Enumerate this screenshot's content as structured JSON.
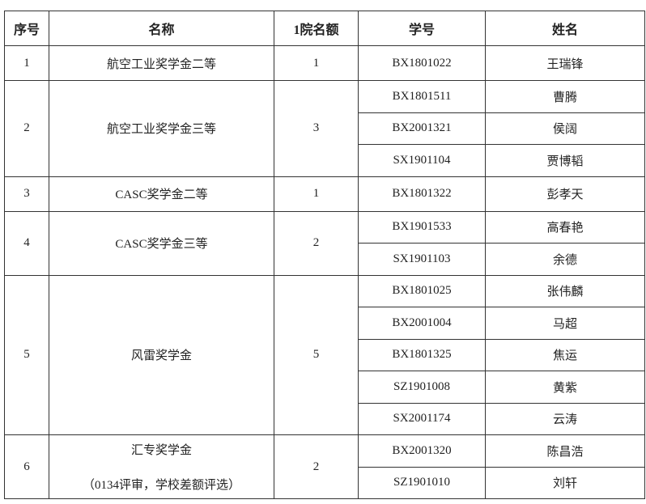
{
  "headers": [
    "序号",
    "名称",
    "1院名额",
    "学号",
    "姓名"
  ],
  "awards": [
    {
      "no": "1",
      "name": "航空工业奖学金二等",
      "quota": "1",
      "students": [
        {
          "id": "BX1801022",
          "name": "王瑞锋"
        }
      ]
    },
    {
      "no": "2",
      "name": "航空工业奖学金三等",
      "quota": "3",
      "students": [
        {
          "id": "BX1801511",
          "name": "曹腾"
        },
        {
          "id": "BX2001321",
          "name": "侯阔"
        },
        {
          "id": "SX1901104",
          "name": "贾博韬"
        }
      ]
    },
    {
      "no": "3",
      "name": "CASC奖学金二等",
      "quota": "1",
      "students": [
        {
          "id": "BX1801322",
          "name": "彭孝天"
        }
      ]
    },
    {
      "no": "4",
      "name": "CASC奖学金三等",
      "quota": "2",
      "students": [
        {
          "id": "BX1901533",
          "name": "高春艳"
        },
        {
          "id": "SX1901103",
          "name": "余德"
        }
      ]
    },
    {
      "no": "5",
      "name": "风雷奖学金",
      "quota": "5",
      "students": [
        {
          "id": "BX1801025",
          "name": "张伟麟"
        },
        {
          "id": "BX2001004",
          "name": "马超"
        },
        {
          "id": "BX1801325",
          "name": "焦运"
        },
        {
          "id": "SZ1901008",
          "name": "黄紫"
        },
        {
          "id": "SX2001174",
          "name": "云涛"
        }
      ]
    },
    {
      "no": "6",
      "name": "汇专奖学金",
      "note": "（0134评审，学校差额评选）",
      "quota": "2",
      "students": [
        {
          "id": "BX2001320",
          "name": "陈昌浩"
        },
        {
          "id": "SZ1901010",
          "name": "刘轩"
        }
      ]
    }
  ]
}
